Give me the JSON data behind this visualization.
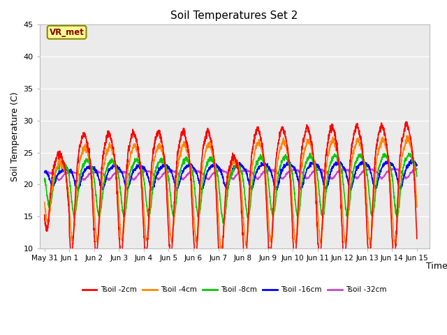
{
  "title": "Soil Temperatures Set 2",
  "xlabel": "Time",
  "ylabel": "Soil Temperature (C)",
  "ylim": [
    10,
    45
  ],
  "xlim": [
    -0.2,
    15.5
  ],
  "bg_color": "#ebebeb",
  "legend_label": "VR_met",
  "series_colors": {
    "Tsoil -2cm": "#ff0000",
    "Tsoil -4cm": "#ff8800",
    "Tsoil -8cm": "#00cc00",
    "Tsoil -16cm": "#0000ff",
    "Tsoil -32cm": "#cc44cc"
  },
  "xtick_labels": [
    "May 31",
    "Jun 1",
    "Jun 2",
    "Jun 3",
    "Jun 4",
    "Jun 5",
    "Jun 6",
    "Jun 7",
    "Jun 8",
    "Jun 9",
    "Jun 10",
    "Jun 11",
    "Jun 12",
    "Jun 13",
    "Jun 14",
    "Jun 15"
  ],
  "xtick_positions": [
    0,
    1,
    2,
    3,
    4,
    5,
    6,
    7,
    8,
    9,
    10,
    11,
    12,
    13,
    14,
    15
  ],
  "ytick_labels": [
    "10",
    "15",
    "20",
    "25",
    "30",
    "35",
    "40",
    "45"
  ],
  "ytick_positions": [
    10,
    15,
    20,
    25,
    30,
    35,
    40,
    45
  ]
}
